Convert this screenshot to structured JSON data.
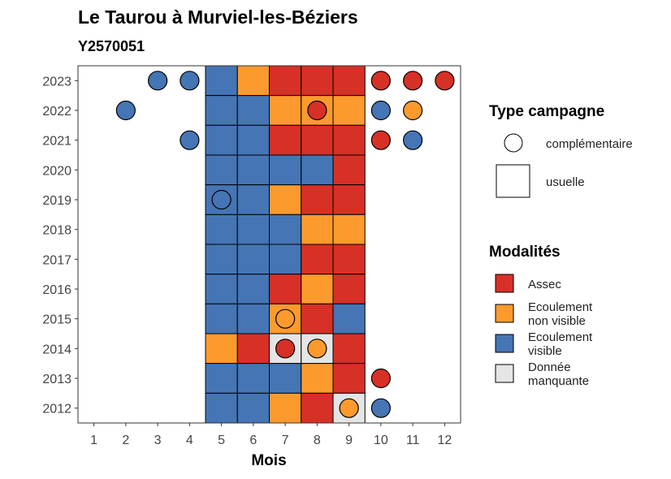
{
  "chart_data": {
    "type": "heatmap",
    "title": "Le Taurou à Murviel-les-Béziers",
    "subtitle": "Y2570051",
    "xlabel": "Mois",
    "ylabel": "",
    "x_ticks": [
      "1",
      "2",
      "3",
      "4",
      "5",
      "6",
      "7",
      "8",
      "9",
      "10",
      "11",
      "12"
    ],
    "y_ticks": [
      "2023",
      "2022",
      "2021",
      "2020",
      "2019",
      "2018",
      "2017",
      "2016",
      "2015",
      "2014",
      "2013",
      "2012"
    ],
    "legend_campagne": {
      "title": "Type campagne",
      "items": [
        {
          "label": "complémentaire",
          "shape": "circle"
        },
        {
          "label": "usuelle",
          "shape": "square"
        }
      ]
    },
    "legend_modalites": {
      "title": "Modalités",
      "items": [
        {
          "key": "assec",
          "lines": [
            "Assec"
          ],
          "color": "#d73027"
        },
        {
          "key": "nonvisible",
          "lines": [
            "Ecoulement",
            "non visible"
          ],
          "color": "#fd9a2e"
        },
        {
          "key": "visible",
          "lines": [
            "Ecoulement",
            "visible"
          ],
          "color": "#4575b4"
        },
        {
          "key": "manquante",
          "lines": [
            "Donnée",
            "manquante"
          ],
          "color": "#e5e5e5"
        }
      ]
    },
    "usuelle": [
      {
        "year": 2023,
        "month": 5,
        "value": "visible"
      },
      {
        "year": 2023,
        "month": 6,
        "value": "nonvisible"
      },
      {
        "year": 2023,
        "month": 7,
        "value": "assec"
      },
      {
        "year": 2023,
        "month": 8,
        "value": "assec"
      },
      {
        "year": 2023,
        "month": 9,
        "value": "assec"
      },
      {
        "year": 2022,
        "month": 5,
        "value": "visible"
      },
      {
        "year": 2022,
        "month": 6,
        "value": "visible"
      },
      {
        "year": 2022,
        "month": 7,
        "value": "nonvisible"
      },
      {
        "year": 2022,
        "month": 8,
        "value": "nonvisible"
      },
      {
        "year": 2022,
        "month": 9,
        "value": "nonvisible"
      },
      {
        "year": 2021,
        "month": 5,
        "value": "visible"
      },
      {
        "year": 2021,
        "month": 6,
        "value": "visible"
      },
      {
        "year": 2021,
        "month": 7,
        "value": "assec"
      },
      {
        "year": 2021,
        "month": 8,
        "value": "assec"
      },
      {
        "year": 2021,
        "month": 9,
        "value": "assec"
      },
      {
        "year": 2020,
        "month": 5,
        "value": "visible"
      },
      {
        "year": 2020,
        "month": 6,
        "value": "visible"
      },
      {
        "year": 2020,
        "month": 7,
        "value": "visible"
      },
      {
        "year": 2020,
        "month": 8,
        "value": "visible"
      },
      {
        "year": 2020,
        "month": 9,
        "value": "assec"
      },
      {
        "year": 2019,
        "month": 5,
        "value": "visible"
      },
      {
        "year": 2019,
        "month": 6,
        "value": "visible"
      },
      {
        "year": 2019,
        "month": 7,
        "value": "nonvisible"
      },
      {
        "year": 2019,
        "month": 8,
        "value": "assec"
      },
      {
        "year": 2019,
        "month": 9,
        "value": "assec"
      },
      {
        "year": 2018,
        "month": 5,
        "value": "visible"
      },
      {
        "year": 2018,
        "month": 6,
        "value": "visible"
      },
      {
        "year": 2018,
        "month": 7,
        "value": "visible"
      },
      {
        "year": 2018,
        "month": 8,
        "value": "nonvisible"
      },
      {
        "year": 2018,
        "month": 9,
        "value": "nonvisible"
      },
      {
        "year": 2017,
        "month": 5,
        "value": "visible"
      },
      {
        "year": 2017,
        "month": 6,
        "value": "visible"
      },
      {
        "year": 2017,
        "month": 7,
        "value": "visible"
      },
      {
        "year": 2017,
        "month": 8,
        "value": "assec"
      },
      {
        "year": 2017,
        "month": 9,
        "value": "assec"
      },
      {
        "year": 2016,
        "month": 5,
        "value": "visible"
      },
      {
        "year": 2016,
        "month": 6,
        "value": "visible"
      },
      {
        "year": 2016,
        "month": 7,
        "value": "assec"
      },
      {
        "year": 2016,
        "month": 8,
        "value": "nonvisible"
      },
      {
        "year": 2016,
        "month": 9,
        "value": "assec"
      },
      {
        "year": 2015,
        "month": 5,
        "value": "visible"
      },
      {
        "year": 2015,
        "month": 6,
        "value": "visible"
      },
      {
        "year": 2015,
        "month": 7,
        "value": "nonvisible"
      },
      {
        "year": 2015,
        "month": 8,
        "value": "assec"
      },
      {
        "year": 2015,
        "month": 9,
        "value": "visible"
      },
      {
        "year": 2014,
        "month": 5,
        "value": "nonvisible"
      },
      {
        "year": 2014,
        "month": 6,
        "value": "assec"
      },
      {
        "year": 2014,
        "month": 7,
        "value": "manquante"
      },
      {
        "year": 2014,
        "month": 8,
        "value": "manquante"
      },
      {
        "year": 2014,
        "month": 9,
        "value": "assec"
      },
      {
        "year": 2013,
        "month": 5,
        "value": "visible"
      },
      {
        "year": 2013,
        "month": 6,
        "value": "visible"
      },
      {
        "year": 2013,
        "month": 7,
        "value": "visible"
      },
      {
        "year": 2013,
        "month": 8,
        "value": "nonvisible"
      },
      {
        "year": 2013,
        "month": 9,
        "value": "assec"
      },
      {
        "year": 2012,
        "month": 5,
        "value": "visible"
      },
      {
        "year": 2012,
        "month": 6,
        "value": "visible"
      },
      {
        "year": 2012,
        "month": 7,
        "value": "nonvisible"
      },
      {
        "year": 2012,
        "month": 8,
        "value": "assec"
      },
      {
        "year": 2012,
        "month": 9,
        "value": "manquante"
      }
    ],
    "complementaire": [
      {
        "year": 2023,
        "month": 3,
        "value": "visible"
      },
      {
        "year": 2023,
        "month": 4,
        "value": "visible"
      },
      {
        "year": 2023,
        "month": 10,
        "value": "assec"
      },
      {
        "year": 2023,
        "month": 11,
        "value": "assec"
      },
      {
        "year": 2023,
        "month": 12,
        "value": "assec"
      },
      {
        "year": 2022,
        "month": 2,
        "value": "visible"
      },
      {
        "year": 2022,
        "month": 8,
        "value": "assec"
      },
      {
        "year": 2022,
        "month": 10,
        "value": "visible"
      },
      {
        "year": 2022,
        "month": 11,
        "value": "nonvisible"
      },
      {
        "year": 2021,
        "month": 4,
        "value": "visible"
      },
      {
        "year": 2021,
        "month": 10,
        "value": "assec"
      },
      {
        "year": 2021,
        "month": 11,
        "value": "visible"
      },
      {
        "year": 2019,
        "month": 5,
        "value": "visible"
      },
      {
        "year": 2015,
        "month": 7,
        "value": "nonvisible"
      },
      {
        "year": 2014,
        "month": 7,
        "value": "assec"
      },
      {
        "year": 2014,
        "month": 8,
        "value": "nonvisible"
      },
      {
        "year": 2013,
        "month": 10,
        "value": "assec"
      },
      {
        "year": 2012,
        "month": 9,
        "value": "nonvisible"
      },
      {
        "year": 2012,
        "month": 10,
        "value": "visible"
      }
    ]
  }
}
